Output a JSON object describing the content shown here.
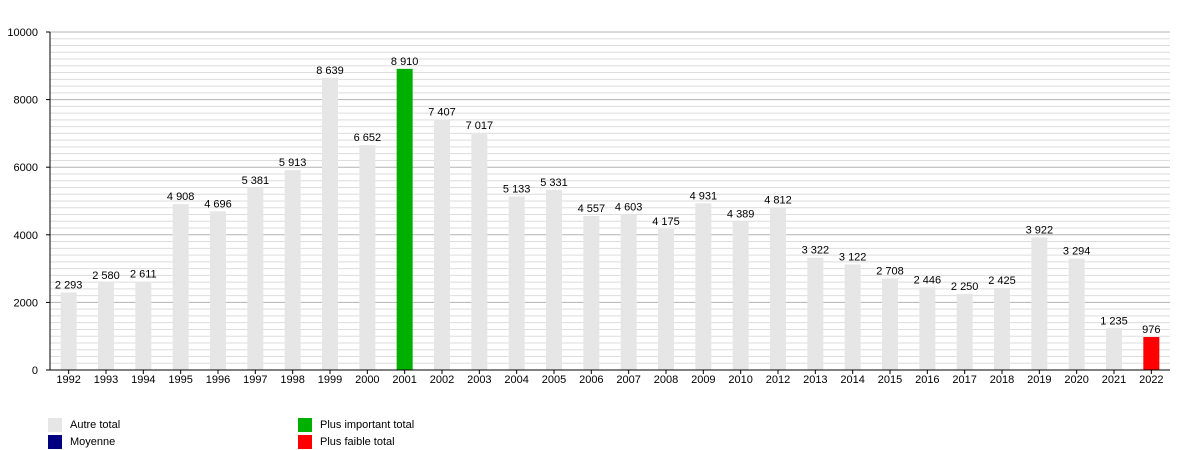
{
  "chart_data": {
    "type": "bar",
    "categories": [
      "1992",
      "1993",
      "1994",
      "1995",
      "1996",
      "1997",
      "1998",
      "1999",
      "2000",
      "2001",
      "2002",
      "2003",
      "2004",
      "2005",
      "2006",
      "2007",
      "2008",
      "2009",
      "2010",
      "2012",
      "2013",
      "2014",
      "2015",
      "2016",
      "2017",
      "2018",
      "2019",
      "2020",
      "2021",
      "2022"
    ],
    "values": [
      2293,
      2580,
      2611,
      4908,
      4696,
      5381,
      5913,
      8639,
      6652,
      8910,
      7407,
      7017,
      5133,
      5331,
      4557,
      4603,
      4175,
      4931,
      4389,
      4812,
      3322,
      3122,
      2708,
      2446,
      2250,
      2425,
      3922,
      3294,
      1235,
      976
    ],
    "value_labels": [
      "2 293",
      "2 580",
      "2 611",
      "4 908",
      "4 696",
      "5 381",
      "5 913",
      "8 639",
      "6 652",
      "8 910",
      "7 407",
      "7 017",
      "5 133",
      "5 331",
      "4 557",
      "4 603",
      "4 175",
      "4 931",
      "4 389",
      "4 812",
      "3 322",
      "3 122",
      "2 708",
      "2 446",
      "2 250",
      "2 425",
      "3 922",
      "3 294",
      "1 235",
      "976"
    ],
    "ylim": [
      0,
      10000
    ],
    "yticks": [
      0,
      2000,
      4000,
      6000,
      8000,
      10000
    ],
    "minor_step": 200,
    "grid": true,
    "highlight_max_index": 9,
    "highlight_min_index": 29,
    "colors": {
      "default": "#e6e6e6",
      "max": "#00b000",
      "min": "#ff0000",
      "average": "#000080",
      "grid_major": "#b3b3b3",
      "grid_minor": "#dddddd",
      "axis": "#000000"
    },
    "legend": {
      "placement": "bottom-left",
      "items": [
        {
          "label": "Autre total",
          "color": "#e6e6e6"
        },
        {
          "label": "Moyenne",
          "color": "#000080"
        },
        {
          "label": "Plus important total",
          "color": "#00b000"
        },
        {
          "label": "Plus faible total",
          "color": "#ff0000"
        }
      ]
    }
  }
}
